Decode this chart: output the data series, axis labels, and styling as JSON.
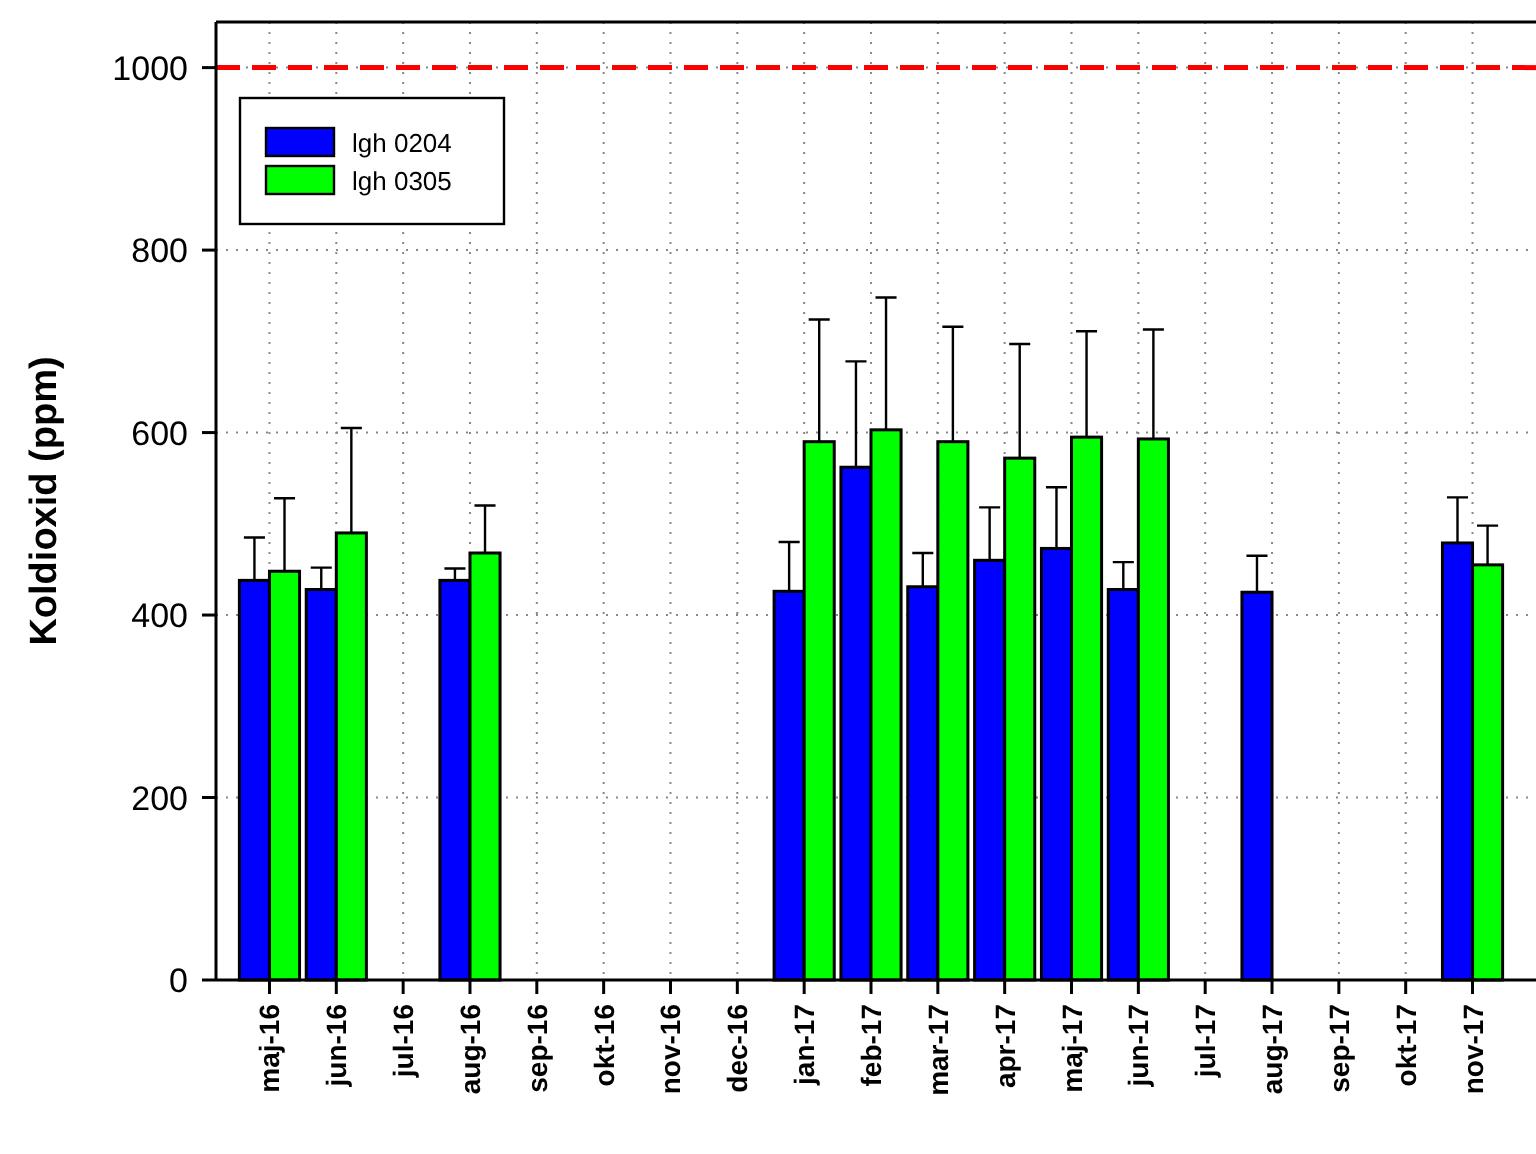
{
  "chart_data": {
    "type": "bar",
    "ylabel": "Koldioxid (ppm)",
    "categories": [
      "maj-16",
      "jun-16",
      "jul-16",
      "aug-16",
      "sep-16",
      "okt-16",
      "nov-16",
      "dec-16",
      "jan-17",
      "feb-17",
      "mar-17",
      "apr-17",
      "maj-17",
      "jun-17",
      "jul-17",
      "aug-17",
      "sep-17",
      "okt-17",
      "nov-17"
    ],
    "series": [
      {
        "name": "lgh 0204",
        "color": "#0000ff",
        "values": [
          438,
          428,
          null,
          438,
          null,
          null,
          null,
          null,
          426,
          562,
          431,
          460,
          473,
          428,
          null,
          425,
          null,
          null,
          479
        ],
        "errors": [
          47,
          24,
          null,
          13,
          null,
          null,
          null,
          null,
          54,
          116,
          37,
          58,
          67,
          30,
          null,
          40,
          null,
          null,
          50
        ]
      },
      {
        "name": "lgh 0305",
        "color": "#00ff00",
        "values": [
          448,
          490,
          null,
          468,
          null,
          null,
          null,
          null,
          590,
          603,
          590,
          572,
          595,
          593,
          null,
          null,
          null,
          null,
          455
        ],
        "errors": [
          80,
          115,
          null,
          52,
          null,
          null,
          null,
          null,
          134,
          145,
          126,
          125,
          116,
          120,
          null,
          null,
          null,
          null,
          43
        ]
      }
    ],
    "ylim": [
      0,
      1050
    ],
    "yticks": [
      0,
      200,
      400,
      600,
      800,
      1000
    ],
    "grid": true,
    "legend": "top left",
    "ref_lines": [
      {
        "axis": "y",
        "value": 1000,
        "color": "#ff0000",
        "line_style": "dashed"
      }
    ]
  }
}
